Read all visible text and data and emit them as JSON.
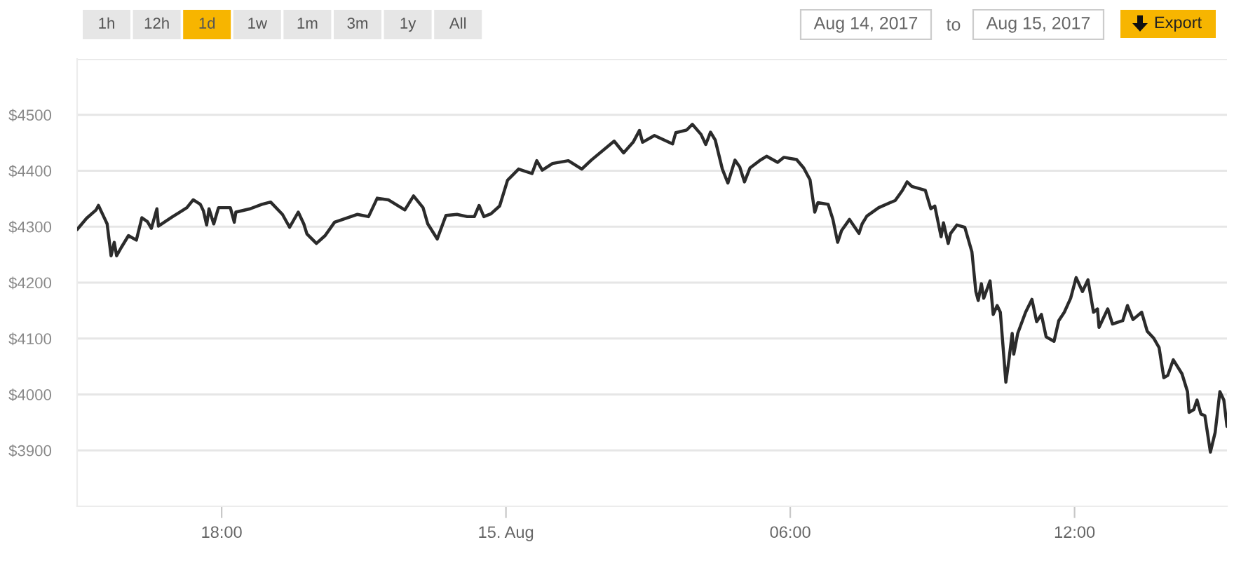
{
  "chart_data": {
    "type": "line",
    "color": "#2b2b2b",
    "line_style": "solid",
    "marker": "none",
    "grid": "y",
    "legend": false,
    "xlim": [
      "2017-08-14T14:57",
      "2017-08-15T15:13"
    ],
    "ylim": [
      3800,
      4600
    ],
    "xticks": [
      {
        "value": "2017-08-14T18:00",
        "label": "18:00"
      },
      {
        "value": "2017-08-15T00:00",
        "label": "15. Aug"
      },
      {
        "value": "2017-08-15T06:00",
        "label": "06:00"
      },
      {
        "value": "2017-08-15T12:00",
        "label": "12:00"
      }
    ],
    "yticks": [
      {
        "value": 3900,
        "label": "$3900"
      },
      {
        "value": 4000,
        "label": "$4000"
      },
      {
        "value": 4100,
        "label": "$4100"
      },
      {
        "value": 4200,
        "label": "$4200"
      },
      {
        "value": 4300,
        "label": "$4300"
      },
      {
        "value": 4400,
        "label": "$4400"
      },
      {
        "value": 4500,
        "label": "$4500"
      },
      {
        "value": 4600,
        "label": null
      }
    ],
    "annotations": [
      "1h",
      "12h",
      "1d",
      "1w",
      "1m",
      "3m",
      "1y",
      "All",
      "Aug 14, 2017",
      "to",
      "Aug 15, 2017",
      "Export"
    ],
    "x": [
      "2017-08-14T14:57",
      "2017-08-14T15:09",
      "2017-08-14T15:21",
      "2017-08-14T15:24",
      "2017-08-14T15:29",
      "2017-08-14T15:35",
      "2017-08-14T15:40",
      "2017-08-14T15:44",
      "2017-08-14T15:47",
      "2017-08-14T15:53",
      "2017-08-14T16:02",
      "2017-08-14T16:12",
      "2017-08-14T16:19",
      "2017-08-14T16:26",
      "2017-08-14T16:31",
      "2017-08-14T16:38",
      "2017-08-14T16:40",
      "2017-08-14T16:58",
      "2017-08-14T17:16",
      "2017-08-14T17:24",
      "2017-08-14T17:33",
      "2017-08-14T17:37",
      "2017-08-14T17:41",
      "2017-08-14T17:44",
      "2017-08-14T17:50",
      "2017-08-14T17:56",
      "2017-08-14T18:11",
      "2017-08-14T18:16",
      "2017-08-14T18:18",
      "2017-08-14T18:36",
      "2017-08-14T18:51",
      "2017-08-14T19:02",
      "2017-08-14T19:17",
      "2017-08-14T19:26",
      "2017-08-14T19:37",
      "2017-08-14T19:44",
      "2017-08-14T19:48",
      "2017-08-14T20:00",
      "2017-08-14T20:11",
      "2017-08-14T20:23",
      "2017-08-14T20:52",
      "2017-08-14T21:06",
      "2017-08-14T21:17",
      "2017-08-14T21:31",
      "2017-08-14T21:52",
      "2017-08-14T22:03",
      "2017-08-14T22:15",
      "2017-08-14T22:21",
      "2017-08-14T22:33",
      "2017-08-14T22:44",
      "2017-08-14T22:58",
      "2017-08-14T23:11",
      "2017-08-14T23:20",
      "2017-08-14T23:26",
      "2017-08-14T23:32",
      "2017-08-14T23:41",
      "2017-08-14T23:52",
      "2017-08-15T00:02",
      "2017-08-15T00:16",
      "2017-08-15T00:33",
      "2017-08-15T00:39",
      "2017-08-15T00:46",
      "2017-08-15T00:59",
      "2017-08-15T01:19",
      "2017-08-15T01:36",
      "2017-08-15T01:48",
      "2017-08-15T02:17",
      "2017-08-15T02:29",
      "2017-08-15T02:41",
      "2017-08-15T02:49",
      "2017-08-15T02:53",
      "2017-08-15T03:08",
      "2017-08-15T03:31",
      "2017-08-15T03:35",
      "2017-08-15T03:49",
      "2017-08-15T03:56",
      "2017-08-15T04:07",
      "2017-08-15T04:13",
      "2017-08-15T04:19",
      "2017-08-15T04:25",
      "2017-08-15T04:34",
      "2017-08-15T04:41",
      "2017-08-15T04:50",
      "2017-08-15T04:56",
      "2017-08-15T05:02",
      "2017-08-15T05:09",
      "2017-08-15T05:21",
      "2017-08-15T05:30",
      "2017-08-15T05:44",
      "2017-08-15T05:52",
      "2017-08-15T06:08",
      "2017-08-15T06:17",
      "2017-08-15T06:25",
      "2017-08-15T06:31",
      "2017-08-15T06:35",
      "2017-08-15T06:48",
      "2017-08-15T06:54",
      "2017-08-15T07:00",
      "2017-08-15T07:05",
      "2017-08-15T07:15",
      "2017-08-15T07:27",
      "2017-08-15T07:31",
      "2017-08-15T07:37",
      "2017-08-15T07:52",
      "2017-08-15T08:13",
      "2017-08-15T08:22",
      "2017-08-15T08:28",
      "2017-08-15T08:34",
      "2017-08-15T08:51",
      "2017-08-15T08:58",
      "2017-08-15T09:03",
      "2017-08-15T09:11",
      "2017-08-15T09:14",
      "2017-08-15T09:20",
      "2017-08-15T09:23",
      "2017-08-15T09:31",
      "2017-08-15T09:41",
      "2017-08-15T09:50",
      "2017-08-15T09:55",
      "2017-08-15T09:58",
      "2017-08-15T10:02",
      "2017-08-15T10:05",
      "2017-08-15T10:13",
      "2017-08-15T10:17",
      "2017-08-15T10:22",
      "2017-08-15T10:26",
      "2017-08-15T10:33",
      "2017-08-15T10:37",
      "2017-08-15T10:41",
      "2017-08-15T10:43",
      "2017-08-15T10:48",
      "2017-08-15T10:58",
      "2017-08-15T11:06",
      "2017-08-15T11:12",
      "2017-08-15T11:18",
      "2017-08-15T11:24",
      "2017-08-15T11:34",
      "2017-08-15T11:40",
      "2017-08-15T11:47",
      "2017-08-15T11:55",
      "2017-08-15T12:02",
      "2017-08-15T12:10",
      "2017-08-15T12:17",
      "2017-08-15T12:24",
      "2017-08-15T12:29",
      "2017-08-15T12:31",
      "2017-08-15T12:42",
      "2017-08-15T12:48",
      "2017-08-15T13:01",
      "2017-08-15T13:07",
      "2017-08-15T13:14",
      "2017-08-15T13:25",
      "2017-08-15T13:32",
      "2017-08-15T13:40",
      "2017-08-15T13:47",
      "2017-08-15T13:53",
      "2017-08-15T13:58",
      "2017-08-15T14:05",
      "2017-08-15T14:16",
      "2017-08-15T14:23",
      "2017-08-15T14:25",
      "2017-08-15T14:31",
      "2017-08-15T14:35",
      "2017-08-15T14:40",
      "2017-08-15T14:45",
      "2017-08-15T14:52",
      "2017-08-15T14:58",
      "2017-08-15T15:04",
      "2017-08-15T15:09",
      "2017-08-15T15:13"
    ],
    "values": [
      4295,
      4315,
      4330,
      4338,
      4323,
      4305,
      4248,
      4272,
      4248,
      4263,
      4284,
      4276,
      4316,
      4309,
      4297,
      4332,
      4301,
      4318,
      4334,
      4348,
      4340,
      4328,
      4303,
      4332,
      4305,
      4334,
      4334,
      4308,
      4326,
      4332,
      4340,
      4344,
      4322,
      4299,
      4326,
      4305,
      4287,
      4270,
      4284,
      4308,
      4322,
      4318,
      4351,
      4348,
      4330,
      4355,
      4334,
      4305,
      4278,
      4320,
      4322,
      4318,
      4318,
      4338,
      4318,
      4323,
      4337,
      4383,
      4403,
      4395,
      4418,
      4401,
      4413,
      4418,
      4403,
      4419,
      4453,
      4432,
      4451,
      4472,
      4451,
      4463,
      4448,
      4468,
      4473,
      4483,
      4465,
      4447,
      4469,
      4455,
      4403,
      4378,
      4419,
      4407,
      4380,
      4405,
      4418,
      4426,
      4415,
      4424,
      4420,
      4405,
      4384,
      4326,
      4343,
      4340,
      4313,
      4272,
      4293,
      4313,
      4288,
      4305,
      4319,
      4334,
      4347,
      4365,
      4380,
      4372,
      4365,
      4332,
      4337,
      4282,
      4307,
      4270,
      4288,
      4303,
      4299,
      4255,
      4184,
      4168,
      4198,
      4172,
      4203,
      4143,
      4159,
      4147,
      4022,
      4063,
      4109,
      4072,
      4109,
      4147,
      4170,
      4130,
      4143,
      4103,
      4095,
      4132,
      4147,
      4172,
      4209,
      4184,
      4205,
      4147,
      4153,
      4120,
      4153,
      4126,
      4132,
      4159,
      4134,
      4147,
      4113,
      4101,
      4084,
      4030,
      4034,
      4062,
      4037,
      4005,
      3968,
      3973,
      3990,
      3965,
      3962,
      3897,
      3932,
      4005,
      3990,
      3943
    ]
  }
}
